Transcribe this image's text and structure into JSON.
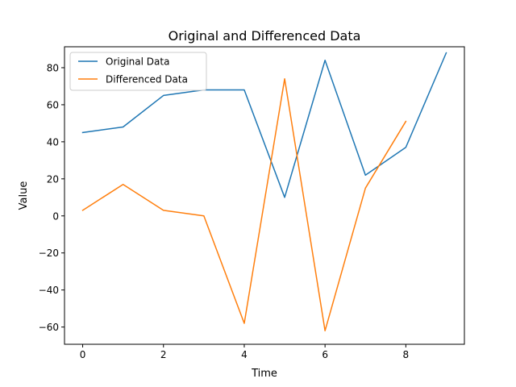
{
  "chart_data": {
    "type": "line",
    "title": "Original and Differenced Data",
    "xlabel": "Time",
    "ylabel": "Value",
    "xlim": [
      -0.45,
      9.45
    ],
    "ylim": [
      -69.3,
      91.3
    ],
    "xticks": [
      0,
      2,
      4,
      6,
      8
    ],
    "yticks": [
      -60,
      -40,
      -20,
      0,
      20,
      40,
      60,
      80
    ],
    "xtick_labels": [
      "0",
      "2",
      "4",
      "6",
      "8"
    ],
    "ytick_labels": [
      "−60",
      "−40",
      "−20",
      "0",
      "20",
      "40",
      "60",
      "80"
    ],
    "grid": false,
    "legend": "top-left",
    "series": [
      {
        "name": "Original Data",
        "color": "#1f77b4",
        "x": [
          0,
          1,
          2,
          3,
          4,
          5,
          6,
          7,
          8,
          9
        ],
        "values": [
          45,
          48,
          65,
          68,
          68,
          10,
          84,
          22,
          37,
          88
        ]
      },
      {
        "name": "Differenced Data",
        "color": "#ff7f0e",
        "x": [
          0,
          1,
          2,
          3,
          4,
          5,
          6,
          7,
          8
        ],
        "values": [
          3,
          17,
          3,
          0,
          -58,
          74,
          -62,
          15,
          51
        ]
      }
    ]
  }
}
